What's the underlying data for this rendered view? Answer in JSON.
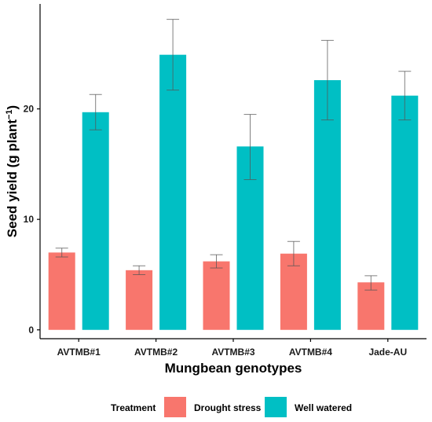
{
  "chart_data": {
    "type": "bar",
    "title": "",
    "xlabel": "Mungbean genotypes",
    "ylabel_main": "Seed yield (g plant",
    "ylabel_exp": "−1",
    "ylabel_close": ")",
    "categories": [
      "AVTMB#1",
      "AVTMB#2",
      "AVTMB#3",
      "AVTMB#4",
      "Jade-AU"
    ],
    "yticks": [
      0,
      10,
      20
    ],
    "ylim": [
      -0.8,
      29.5
    ],
    "grid": false,
    "legend": {
      "title": "Treatment",
      "position": "bottom"
    },
    "series": [
      {
        "name": "Drought stress",
        "color": "#f8766d",
        "values": [
          7.0,
          5.4,
          6.2,
          6.9,
          4.3
        ],
        "err_low": [
          6.6,
          5.0,
          5.6,
          5.8,
          3.6
        ],
        "err_high": [
          7.4,
          5.8,
          6.8,
          8.0,
          4.9
        ]
      },
      {
        "name": "Well watered",
        "color": "#00bfc4",
        "values": [
          19.7,
          24.9,
          16.6,
          22.6,
          21.2
        ],
        "err_low": [
          18.1,
          21.7,
          13.6,
          19.0,
          19.0
        ],
        "err_high": [
          21.3,
          28.1,
          19.5,
          26.2,
          23.4
        ]
      }
    ]
  }
}
